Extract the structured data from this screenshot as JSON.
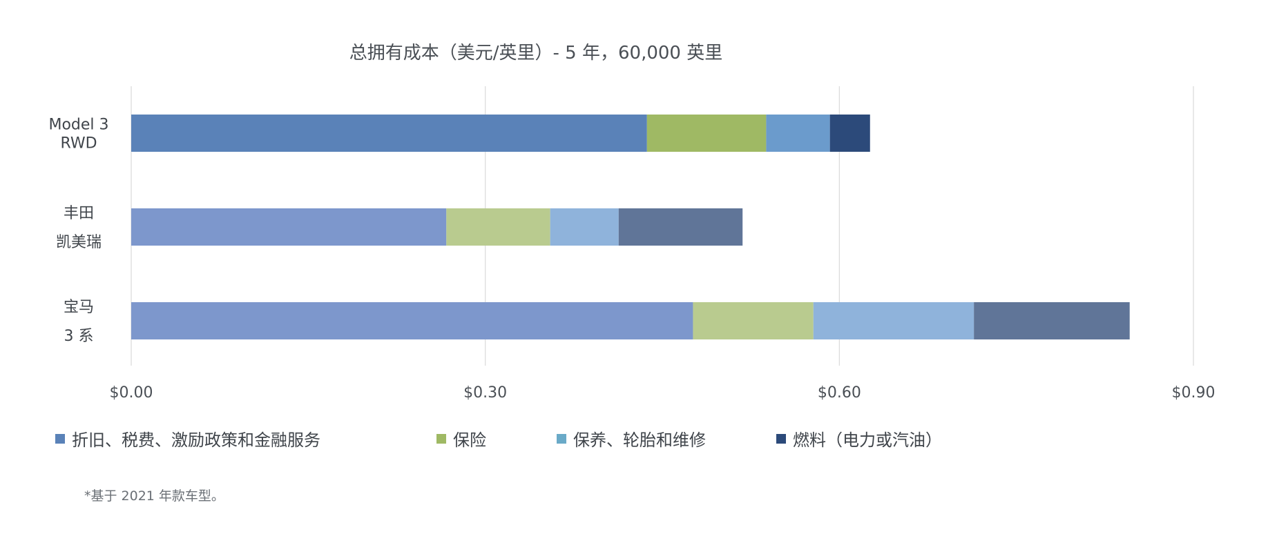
{
  "chart_data": {
    "type": "bar",
    "orientation": "horizontal",
    "stacked": true,
    "title": "总拥有成本（美元/英里）- 5 年，60,000 英里",
    "xlim": [
      0,
      0.9
    ],
    "xticks": [
      0,
      0.3,
      0.6,
      0.9
    ],
    "xtick_labels": [
      "$0.00",
      "$0.30",
      "$0.60",
      "$0.90"
    ],
    "grid": true,
    "legend_position": "bottom",
    "categories": [
      [
        "Model 3",
        "RWD"
      ],
      [
        "丰田",
        "凯美瑞"
      ],
      [
        "宝马",
        "3 系"
      ]
    ],
    "series": [
      {
        "name": "折旧、税费、激励政策和金融服务",
        "values": [
          0.437,
          0.267,
          0.476
        ]
      },
      {
        "name": "保险",
        "values": [
          0.101,
          0.088,
          0.102
        ]
      },
      {
        "name": "保养、轮胎和维修",
        "values": [
          0.054,
          0.058,
          0.136
        ]
      },
      {
        "name": "燃料（电力或汽油）",
        "values": [
          0.034,
          0.105,
          0.132
        ]
      }
    ],
    "bar_colors": [
      [
        "#5a82b8",
        "#9fb964",
        "#6b9bcc",
        "#2c4a7a"
      ],
      [
        "#7d97cc",
        "#b9cb8f",
        "#8fb3db",
        "#607598"
      ],
      [
        "#7d97cc",
        "#b9cb8f",
        "#8fb3db",
        "#607598"
      ]
    ],
    "legend_colors": [
      "#5a82b8",
      "#9fb964",
      "#6aaac8",
      "#2c4a7a"
    ]
  },
  "footnote": "*基于 2021 年款车型。"
}
